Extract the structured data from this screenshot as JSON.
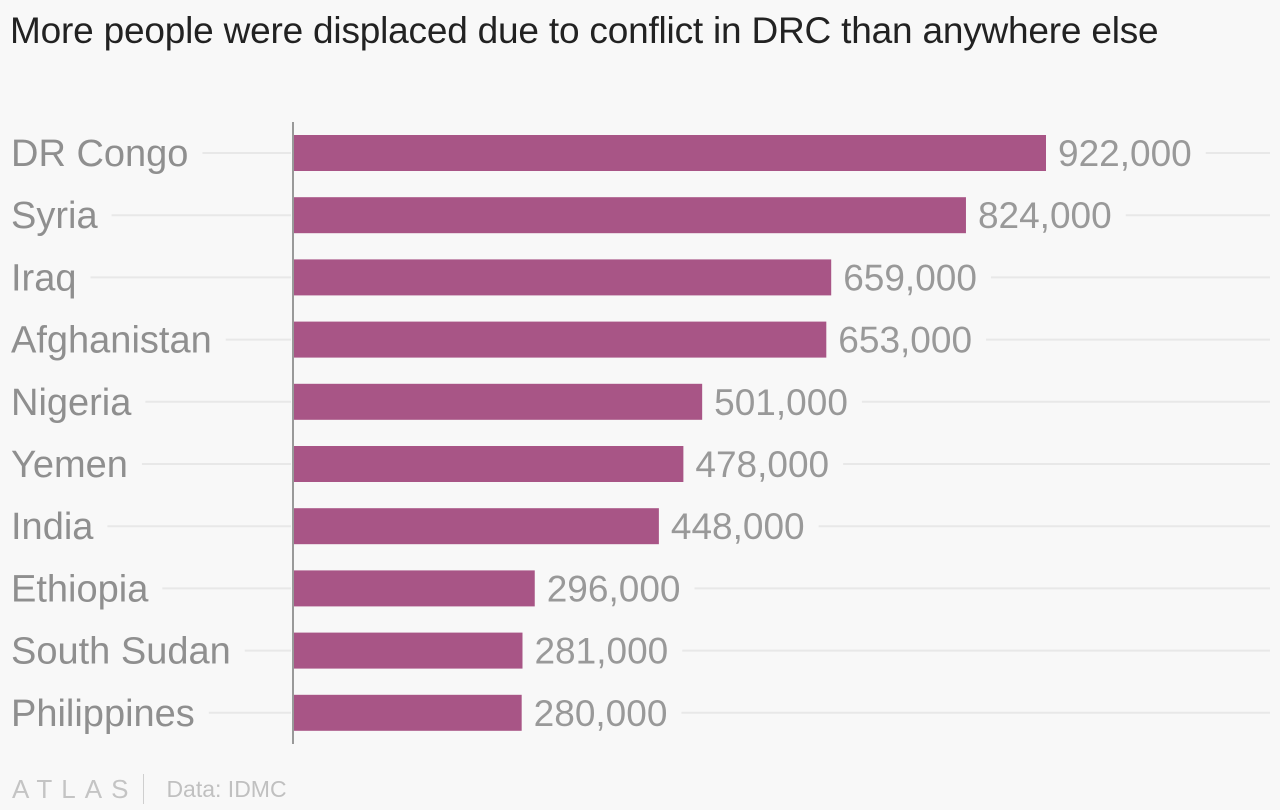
{
  "title": "More people were displaced due to conflict in DRC than anywhere else",
  "footer": {
    "brand": "ATLAS",
    "source": "Data: IDMC"
  },
  "colors": {
    "bar": "#a85586",
    "grid": "#e8e8e8",
    "axis": "#999999",
    "category_text": "#8f8f8f",
    "value_text": "#999999"
  },
  "chart_data": {
    "type": "bar",
    "orientation": "horizontal",
    "categories": [
      "DR Congo",
      "Syria",
      "Iraq",
      "Afghanistan",
      "Nigeria",
      "Yemen",
      "India",
      "Ethiopia",
      "South Sudan",
      "Philippines"
    ],
    "values": [
      922000,
      824000,
      659000,
      653000,
      501000,
      478000,
      448000,
      296000,
      281000,
      280000
    ],
    "value_labels": [
      "922,000",
      "824,000",
      "659,000",
      "653,000",
      "501,000",
      "478,000",
      "448,000",
      "296,000",
      "281,000",
      "280,000"
    ],
    "title": "More people were displaced due to conflict in DRC than anywhere else",
    "xlabel": "",
    "ylabel": "",
    "xlim": [
      0,
      922000
    ],
    "grid": true,
    "legend": "none"
  }
}
